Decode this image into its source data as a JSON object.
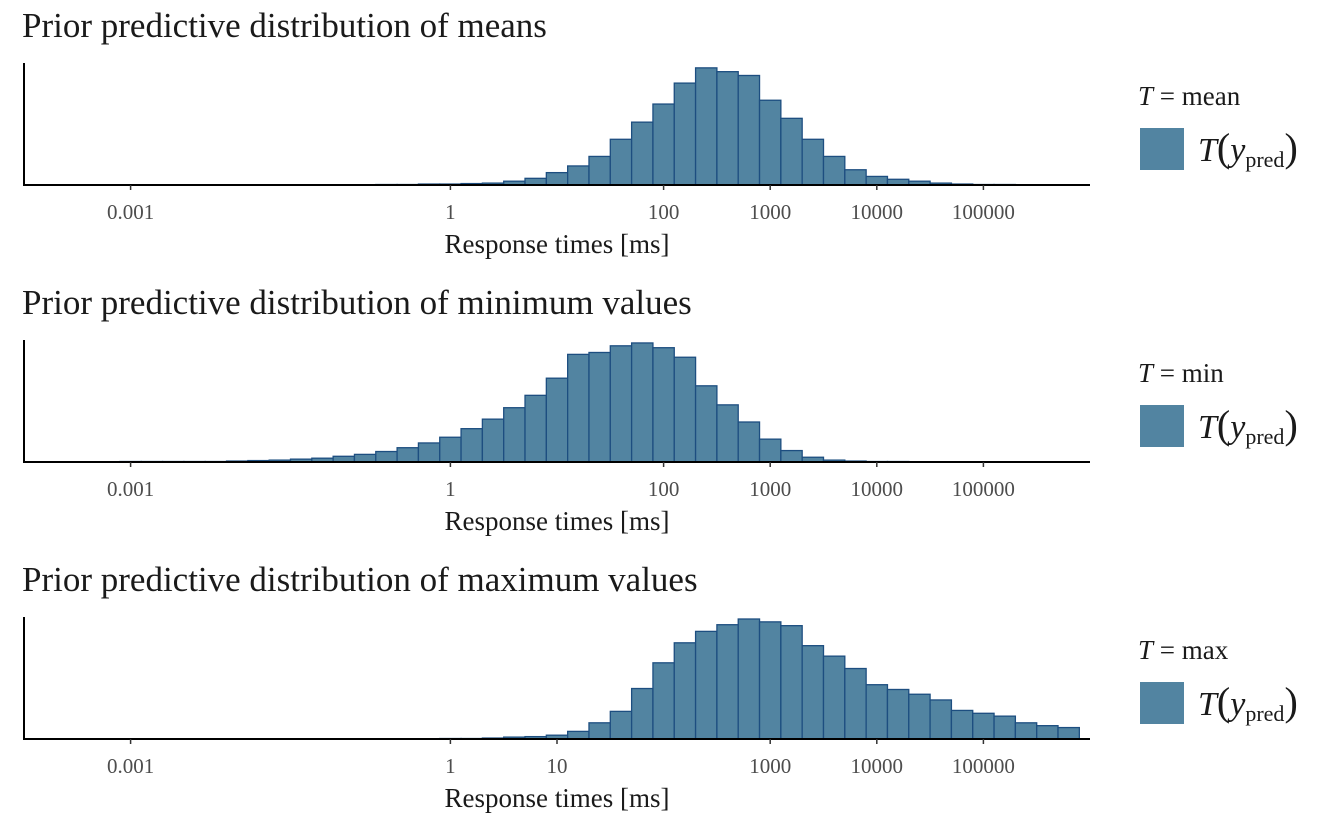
{
  "fill_color": "#5284a1",
  "stroke_color": "#1d4e80",
  "panels": [
    {
      "title": "Prior predictive distribution of means",
      "legend": {
        "stat_symbol": "T",
        "stat_name": "mean",
        "key_label_main": "T",
        "key_label_var": "y",
        "key_label_sub": "pred"
      },
      "chart_data": {
        "type": "bar",
        "title": "Prior predictive distribution of means",
        "xlabel": "Response times [ms]",
        "ylabel": "",
        "x_scale": "log10",
        "xlim": [
          0.0001,
          1000000
        ],
        "xticks": [
          "0.001",
          "1",
          "100",
          "1000",
          "10000",
          "100000"
        ],
        "xtick_values": [
          0.001,
          1,
          100,
          1000,
          10000,
          100000
        ],
        "bin_edges_log10": [
          -0.7,
          -0.5,
          -0.3,
          -0.1,
          0.1,
          0.3,
          0.5,
          0.7,
          0.9,
          1.1,
          1.3,
          1.5,
          1.7,
          1.9,
          2.1,
          2.3,
          2.5,
          2.7,
          2.9,
          3.1,
          3.3,
          3.5,
          3.7,
          3.9,
          4.1,
          4.3,
          4.5,
          4.7,
          4.9,
          5.1,
          5.3,
          5.5,
          5.7,
          5.9
        ],
        "counts": [
          0.5,
          0.5,
          1,
          1,
          1.5,
          2,
          4,
          7,
          13,
          20,
          30,
          48,
          66,
          85,
          107,
          123,
          119,
          115,
          89,
          70,
          48,
          30,
          16,
          9,
          6,
          4,
          2,
          1,
          0.5,
          0.5,
          0,
          0,
          0
        ],
        "ymax": 126,
        "grid": false,
        "legend_position": "right"
      }
    },
    {
      "title": "Prior predictive distribution of minimum values",
      "legend": {
        "stat_symbol": "T",
        "stat_name": "min",
        "key_label_main": "T",
        "key_label_var": "y",
        "key_label_sub": "pred"
      },
      "chart_data": {
        "type": "bar",
        "title": "Prior predictive distribution of minimum values",
        "xlabel": "Response times [ms]",
        "ylabel": "",
        "x_scale": "log10",
        "xlim": [
          0.0001,
          1000000
        ],
        "xticks": [
          "0.001",
          "1",
          "100",
          "1000",
          "10000",
          "100000"
        ],
        "xtick_values": [
          0.001,
          1,
          100,
          1000,
          10000,
          100000
        ],
        "bin_edges_log10": [
          -3.1,
          -2.9,
          -2.7,
          -2.5,
          -2.3,
          -2.1,
          -1.9,
          -1.7,
          -1.5,
          -1.3,
          -1.1,
          -0.9,
          -0.7,
          -0.5,
          -0.3,
          -0.1,
          0.1,
          0.3,
          0.5,
          0.7,
          0.9,
          1.1,
          1.3,
          1.5,
          1.7,
          1.9,
          2.1,
          2.3,
          2.5,
          2.7,
          2.9,
          3.1,
          3.3,
          3.5,
          3.7,
          3.9,
          4.1,
          4.3,
          4.5,
          4.7
        ],
        "counts": [
          0.5,
          0.5,
          0.5,
          0.5,
          0.5,
          1,
          1.5,
          2,
          3,
          4,
          6,
          8,
          11,
          15,
          20,
          26,
          35,
          45,
          57,
          70,
          88,
          113,
          115,
          122,
          125,
          120,
          110,
          80,
          60,
          42,
          24,
          12,
          5,
          2,
          1,
          0.5,
          0.5,
          0,
          0
        ],
        "ymax": 126,
        "grid": false,
        "legend_position": "right"
      }
    },
    {
      "title": "Prior predictive distribution of maximum values",
      "legend": {
        "stat_symbol": "T",
        "stat_name": "max",
        "key_label_main": "T",
        "key_label_var": "y",
        "key_label_sub": "pred"
      },
      "chart_data": {
        "type": "bar",
        "title": "Prior predictive distribution of maximum values",
        "xlabel": "Response times [ms]",
        "ylabel": "",
        "x_scale": "log10",
        "xlim": [
          0.0001,
          1000000
        ],
        "xticks": [
          "0.001",
          "1",
          "10",
          "1000",
          "10000",
          "100000"
        ],
        "xtick_values": [
          0.001,
          1,
          10,
          1000,
          10000,
          100000
        ],
        "bin_edges_log10": [
          -0.1,
          0.1,
          0.3,
          0.5,
          0.7,
          0.9,
          1.1,
          1.3,
          1.5,
          1.7,
          1.9,
          2.1,
          2.3,
          2.5,
          2.7,
          2.9,
          3.1,
          3.3,
          3.5,
          3.7,
          3.9,
          4.1,
          4.3,
          4.5,
          4.7,
          4.9,
          5.1,
          5.3,
          5.5,
          5.7,
          5.9
        ],
        "counts": [
          0.5,
          0.5,
          1,
          2,
          2.5,
          4,
          8,
          17,
          29,
          53,
          80,
          101,
          113,
          120,
          126,
          123,
          119,
          98,
          87,
          74,
          57,
          52,
          47,
          41,
          30,
          27,
          24,
          17,
          14,
          12
        ],
        "ymax": 126,
        "grid": false,
        "legend_position": "right"
      }
    }
  ]
}
